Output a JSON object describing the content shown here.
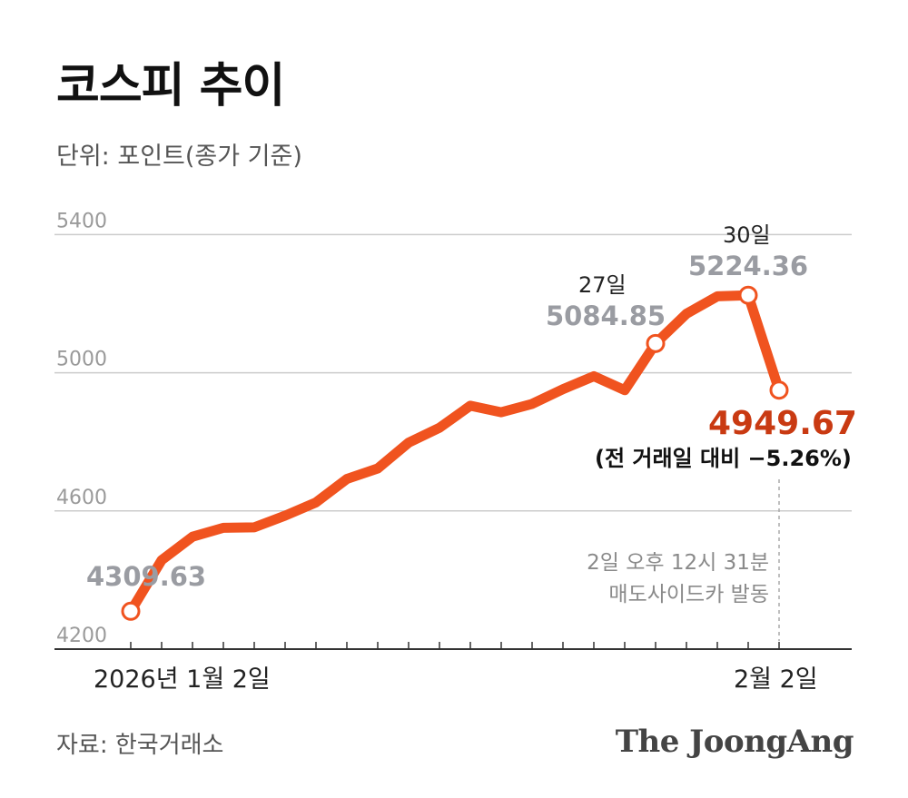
{
  "title": "코스피 추이",
  "unit": "단위: 포인트(종가 기준)",
  "source": "자료: 한국거래소",
  "logo": "The JoongAng",
  "colors": {
    "line": "#f0531f",
    "final": "#c93a12",
    "grid": "#cccccc",
    "label_gray": "#9a9ca2"
  },
  "chart_data": {
    "type": "line",
    "yticks": [
      5400,
      5000,
      4600,
      4200
    ],
    "ylim": [
      4200,
      5400
    ],
    "grid": true,
    "x_labels": {
      "start": "2026년 1월 2일",
      "end": "2월 2일"
    },
    "values": [
      4309.63,
      4457.52,
      4525.48,
      4551.06,
      4552.37,
      4586.32,
      4624.79,
      4692.64,
      4723.1,
      4797.55,
      4840.74,
      4904.66,
      4885.75,
      4909.93,
      4952.53,
      4990.07,
      4949.59,
      5084.85,
      5170.81,
      5221.25,
      5224.36,
      4949.67
    ],
    "annotations": {
      "start": {
        "value": "4309.63"
      },
      "day27": {
        "day": "27일",
        "value": "5084.85"
      },
      "day30": {
        "day": "30일",
        "value": "5224.36"
      },
      "final": {
        "value": "4949.67",
        "change": "(전 거래일 대비 −5.26%)"
      },
      "note": {
        "line1": "2일 오후 12시 31분",
        "line2": "매도사이드카 발동"
      }
    }
  }
}
